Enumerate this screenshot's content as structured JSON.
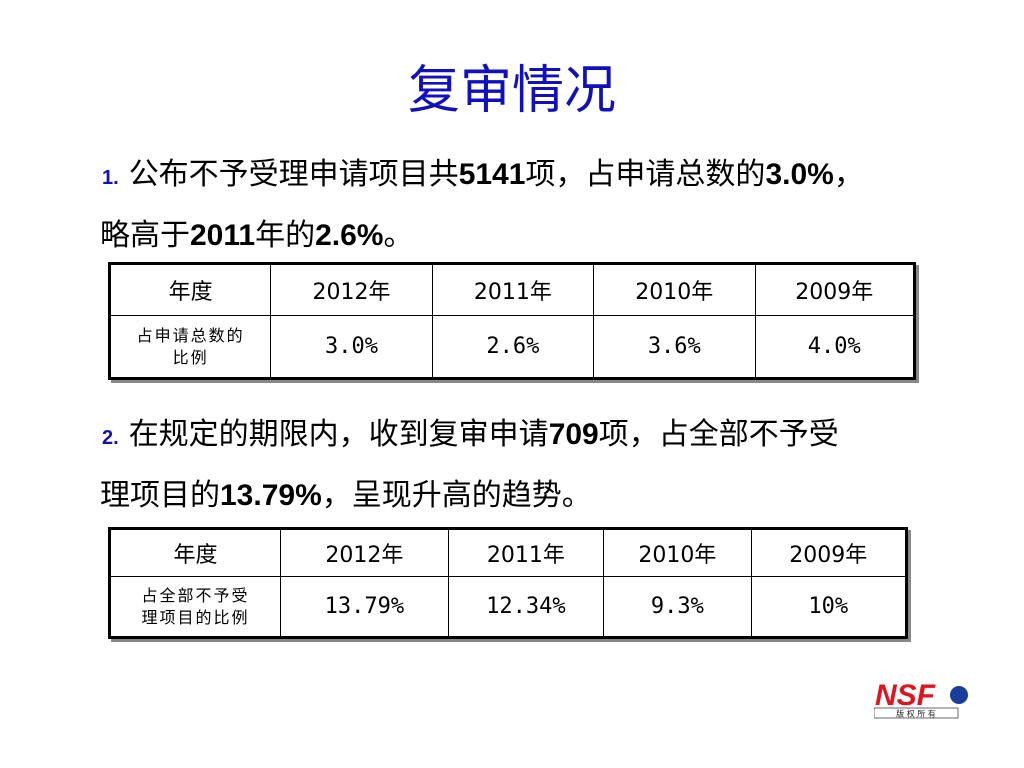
{
  "title": "复审情况",
  "section1": {
    "num": "1.",
    "line1_a": "公布不予受理申请项目共",
    "line1_num": "5141",
    "line1_b": "项，占申请总数的",
    "line1_pct": "3.0%",
    "line1_c": "，",
    "line2_a": "略高于",
    "line2_year": "2011",
    "line2_b": "年的",
    "line2_pct": "2.6%",
    "line2_c": "。"
  },
  "table1": {
    "header": [
      "年度",
      "2012年",
      "2011年",
      "2010年",
      "2009年"
    ],
    "row_label_l1": "占申请总数的",
    "row_label_l2": "比例",
    "values": [
      "3.0%",
      "2.6%",
      "3.6%",
      "4.0%"
    ]
  },
  "section2": {
    "num": "2.",
    "line1_a": "在规定的期限内，收到复审申请",
    "line1_num": "709",
    "line1_b": "项，占全部不予受",
    "line2_a": "理项目的",
    "line2_pct": "13.79%",
    "line2_b": "，呈现升高的趋势。"
  },
  "table2": {
    "header": [
      "年度",
      "2012年",
      "2011年",
      "2010年",
      "2009年"
    ],
    "row_label_l1": "占全部不予受",
    "row_label_l2": "理项目的比例",
    "values": [
      "13.79%",
      "12.34%",
      "9.3%",
      "10%"
    ]
  },
  "logo": {
    "text": "NSF",
    "caption": "版 权 所 有",
    "colors": {
      "red": "#e0141e",
      "blue": "#1a3d9c"
    }
  }
}
